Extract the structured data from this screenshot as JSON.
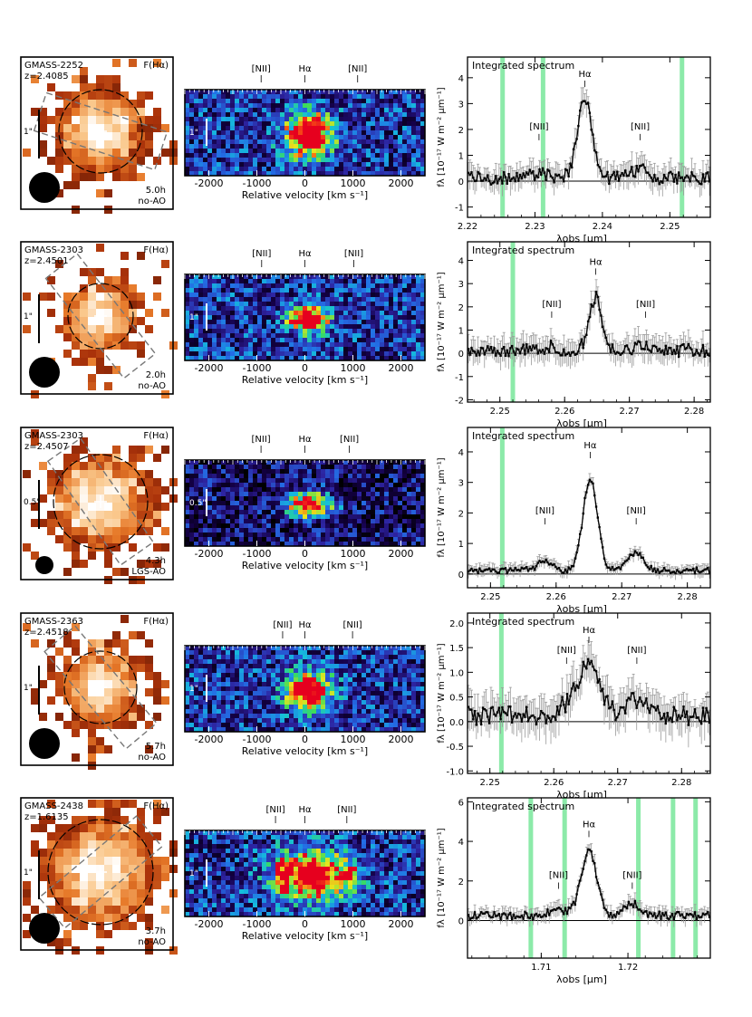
{
  "figure": {
    "labels": {
      "map_quantity": "F(Hα)",
      "line_nii": "[NII]",
      "line_ha": "Hα",
      "pv_xlabel": "Relative velocity  [km s⁻¹]",
      "spec_title": "Integrated spectrum",
      "spec_xlabel": "λobs  [μm]",
      "spec_ylabel": "fλ [10⁻¹⁷ W m⁻² μm⁻¹]"
    },
    "rows": [
      {
        "name": "GMASS-2252",
        "z": "z=2.4085",
        "scale": "1\"",
        "time": "5.0h",
        "mode": "no-AO"
      },
      {
        "name": "GMASS-2303",
        "z": "z=2.4501",
        "scale": "1\"",
        "time": "2.0h",
        "mode": "no-AO"
      },
      {
        "name": "GMASS-2303",
        "z": "z=2.4507",
        "scale": "0.5\"",
        "time": "4.3h",
        "mode": "LGS-AO"
      },
      {
        "name": "GMASS-2363",
        "z": "z=2.4518",
        "scale": "1\"",
        "time": "5.7h",
        "mode": "no-AO"
      },
      {
        "name": "GMASS-2438",
        "z": "z=1.6135",
        "scale": "1\"",
        "time": "3.7h",
        "mode": "no-AO"
      }
    ]
  },
  "chart_data": [
    {
      "type": "line",
      "title": "Integrated spectrum",
      "xlabel": "λobs [μm]",
      "ylabel": "fλ [10^-17 W m^-2 μm^-1]",
      "xlim": [
        2.22,
        2.256
      ],
      "ylim": [
        -1.4,
        4.8
      ],
      "xticks": [
        2.22,
        2.23,
        2.24,
        2.25
      ],
      "yticks": [
        -1,
        0,
        1,
        2,
        3,
        4
      ],
      "ha": 2.2374,
      "nii": [
        2.2306,
        2.2456
      ],
      "sky": [
        2.2252,
        2.2312,
        2.2518
      ],
      "pv_xticks": [
        -2000,
        -1000,
        0,
        1000,
        2000
      ],
      "pv_xlim": [
        -2500,
        2500
      ],
      "seed": 11,
      "peak": 3.0,
      "sigma": 0.0011,
      "nii_amp": 0.35,
      "noise": 0.45
    },
    {
      "type": "line",
      "title": "Integrated spectrum",
      "xlabel": "λobs [μm]",
      "ylabel": "fλ [10^-17 W m^-2 μm^-1]",
      "xlim": [
        2.245,
        2.2825
      ],
      "ylim": [
        -2.1,
        4.8
      ],
      "xticks": [
        2.25,
        2.26,
        2.27,
        2.28
      ],
      "yticks": [
        -2,
        -1,
        0,
        1,
        2,
        3,
        4
      ],
      "ha": 2.2648,
      "nii": [
        2.258,
        2.2725
      ],
      "sky": [
        2.252
      ],
      "pv_xticks": [
        -2000,
        -1000,
        0,
        1000,
        2000
      ],
      "pv_xlim": [
        -2500,
        2500
      ],
      "seed": 23,
      "peak": 2.3,
      "sigma": 0.001,
      "nii_amp": 0.3,
      "noise": 0.5
    },
    {
      "type": "line",
      "title": "Integrated spectrum",
      "xlabel": "λobs [μm]",
      "ylabel": "fλ [10^-17 W m^-2 μm^-1]",
      "xlim": [
        2.2465,
        2.2835
      ],
      "ylim": [
        -0.45,
        4.8
      ],
      "xticks": [
        2.25,
        2.26,
        2.27,
        2.28
      ],
      "yticks": [
        0,
        1,
        2,
        3,
        4
      ],
      "ha": 2.2652,
      "nii": [
        2.2583,
        2.2722
      ],
      "sky": [
        2.2518
      ],
      "pv_xticks": [
        -2000,
        -1000,
        0,
        1000,
        2000
      ],
      "pv_xlim": [
        -2500,
        2500
      ],
      "seed": 37,
      "peak": 3.0,
      "sigma": 0.0011,
      "nii_amp": 0.6,
      "noise": 0.18
    },
    {
      "type": "line",
      "title": "Integrated spectrum",
      "xlabel": "λobs [μm]",
      "ylabel": "fλ [10^-17 W m^-2 μm^-1]",
      "xlim": [
        2.2465,
        2.2845
      ],
      "ylim": [
        -1.05,
        2.2
      ],
      "xticks": [
        2.25,
        2.26,
        2.27,
        2.28
      ],
      "yticks": [
        -1.0,
        -0.5,
        0.0,
        0.5,
        1.0,
        1.5,
        2.0
      ],
      "ha": 2.2655,
      "nii": [
        2.262,
        2.273
      ],
      "sky": [
        2.2518
      ],
      "pv_xticks": [
        -2000,
        -1000,
        0,
        1000,
        2000
      ],
      "pv_xlim": [
        -2500,
        2500
      ],
      "seed": 51,
      "peak": 1.1,
      "sigma": 0.0016,
      "nii_amp": 0.35,
      "noise": 0.35
    },
    {
      "type": "line",
      "title": "Integrated spectrum",
      "xlabel": "λobs [μm]",
      "ylabel": "fλ [10^-17 W m^-2 μm^-1]",
      "xlim": [
        1.7015,
        1.7295
      ],
      "ylim": [
        -1.9,
        6.2
      ],
      "xticks": [
        1.71,
        1.72
      ],
      "yticks": [
        0,
        2,
        4,
        6
      ],
      "ha": 1.7155,
      "nii": [
        1.712,
        1.7205
      ],
      "sky": [
        1.7088,
        1.7127,
        1.7212,
        1.7252,
        1.7278
      ],
      "pv_xticks": [
        -2000,
        -1000,
        0,
        1000,
        2000
      ],
      "pv_xlim": [
        -2500,
        2500
      ],
      "seed": 67,
      "peak": 3.3,
      "sigma": 0.0009,
      "nii_amp": 0.6,
      "noise": 0.35
    }
  ]
}
